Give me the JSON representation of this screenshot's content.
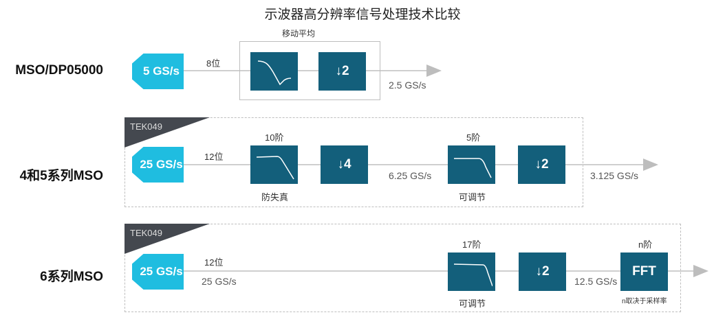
{
  "title": "示波器高分辨率信号处理技术比较",
  "rows": [
    {
      "label": "MSO/DP05000",
      "adc": "5 GS/s",
      "bits": "8位",
      "group_label": "移动平均",
      "decimate": "↓2",
      "output_rate": "2.5 GS/s"
    },
    {
      "label": "4和5系列MSO",
      "tag": "TEK049",
      "adc": "25 GS/s",
      "bits": "12位",
      "filter1_order": "10阶",
      "filter1_caption": "防失真",
      "decimate1": "↓4",
      "mid_rate": "6.25 GS/s",
      "filter2_order": "5阶",
      "filter2_caption": "可调节",
      "decimate2": "↓2",
      "output_rate": "3.125 GS/s"
    },
    {
      "label": "6系列MSO",
      "tag": "TEK049",
      "adc": "25 GS/s",
      "bits": "12位",
      "adc_rate": "25 GS/s",
      "filter_order": "17阶",
      "filter_caption": "可调节",
      "decimate": "↓2",
      "mid_rate": "12.5 GS/s",
      "fft_order": "n阶",
      "fft": "FFT",
      "fft_caption": "n取决于采样率"
    }
  ],
  "colors": {
    "adc": "#1fbde0",
    "block": "#135f7b",
    "tag": "#44484f",
    "line": "#cfcfcf"
  }
}
